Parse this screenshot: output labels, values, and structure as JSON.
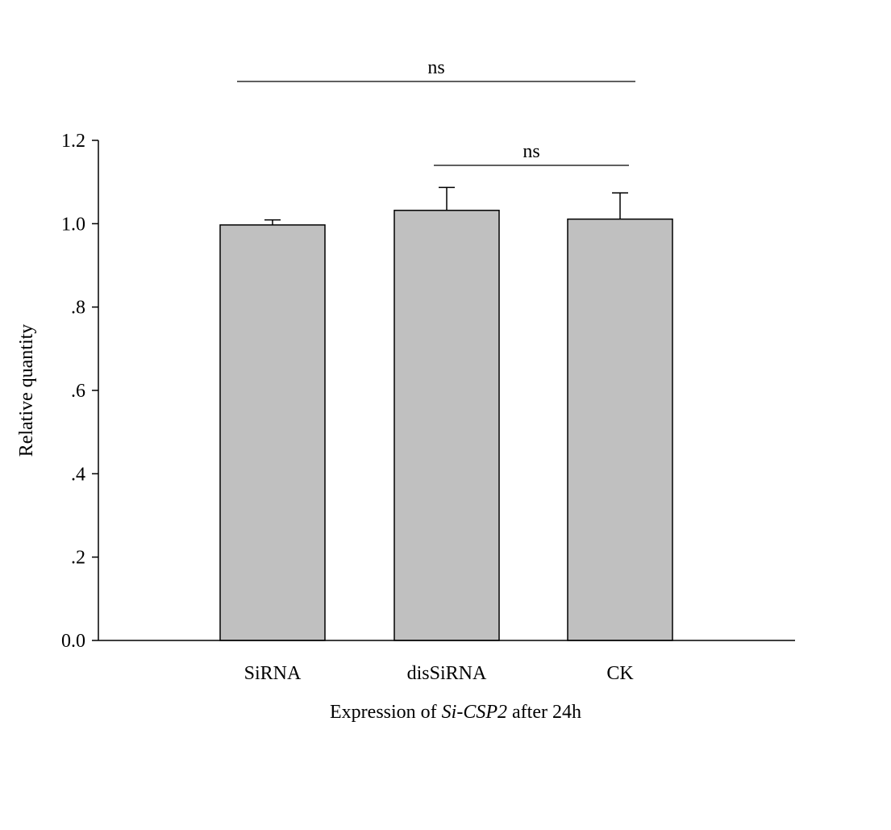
{
  "chart_data": {
    "type": "bar",
    "categories": [
      "SiRNA",
      "disSiRNA",
      "CK"
    ],
    "values": [
      0.997,
      1.032,
      1.011
    ],
    "errors": [
      0.012,
      0.055,
      0.063
    ],
    "ylim": [
      0,
      1.2
    ],
    "yticks": [
      {
        "value": 0.0,
        "label": "0.0"
      },
      {
        "value": 0.2,
        "label": ".2"
      },
      {
        "value": 0.4,
        "label": ".4"
      },
      {
        "value": 0.6,
        "label": ".6"
      },
      {
        "value": 0.8,
        "label": ".8"
      },
      {
        "value": 1.0,
        "label": "1.0"
      },
      {
        "value": 1.2,
        "label": "1.2"
      }
    ],
    "ylabel": "Relative quantity",
    "xlabel": {
      "prefix": "Expression of ",
      "italic": "Si-CSP2",
      "suffix": " after 24h"
    },
    "bar_color": "#c0c0c0",
    "significance": [
      {
        "from": "SiRNA",
        "to": "CK",
        "label": "ns"
      },
      {
        "from": "disSiRNA",
        "to": "CK",
        "label": "ns"
      }
    ]
  }
}
